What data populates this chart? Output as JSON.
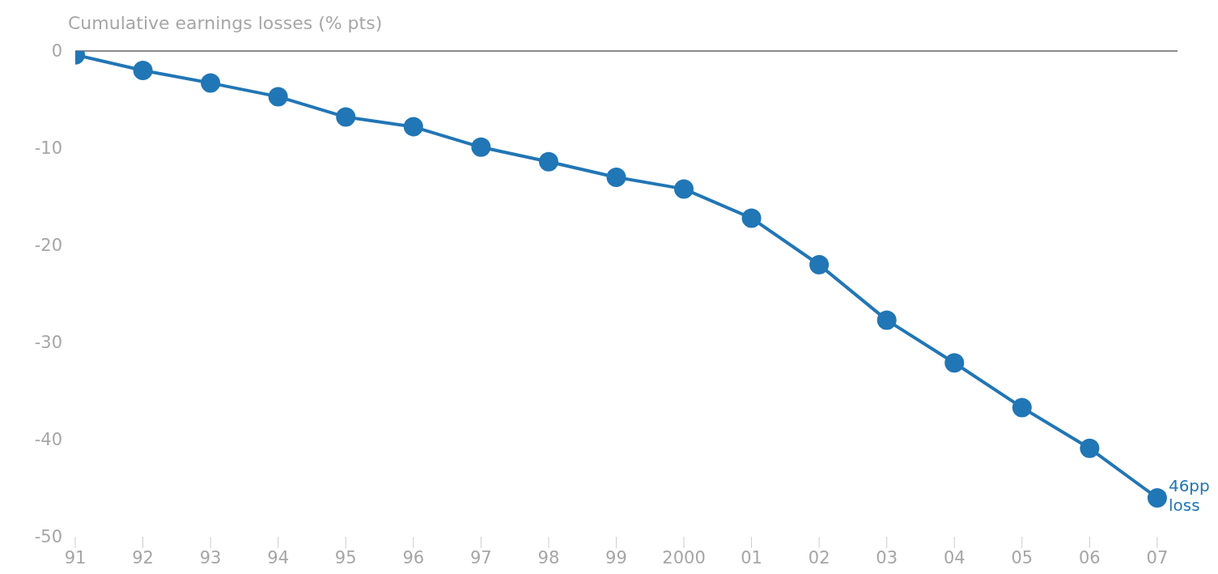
{
  "chart_data": {
    "type": "line",
    "title": "Cumulative earnings losses (% pts)",
    "categories": [
      "91",
      "92",
      "93",
      "94",
      "95",
      "96",
      "97",
      "98",
      "99",
      "2000",
      "01",
      "02",
      "03",
      "04",
      "05",
      "06",
      "07"
    ],
    "series": [
      {
        "color": "#2176b5",
        "values": [
          -0.4,
          -2.0,
          -3.3,
          -4.7,
          -6.8,
          -7.8,
          -9.9,
          -11.4,
          -13.0,
          -14.2,
          -17.2,
          -22.0,
          -27.7,
          -32.1,
          -36.7,
          -40.9,
          -46.0
        ]
      }
    ],
    "ylim": [
      -50,
      0
    ],
    "yticks": [
      -50,
      -40,
      -30,
      -20,
      -10,
      0
    ],
    "marker": "circle",
    "ref_lines": [
      {
        "axis": "y",
        "value": 0,
        "color": "#8c8c8c"
      }
    ],
    "annotations": [
      {
        "text": "46pp loss",
        "x": "07",
        "y": -46
      }
    ]
  }
}
